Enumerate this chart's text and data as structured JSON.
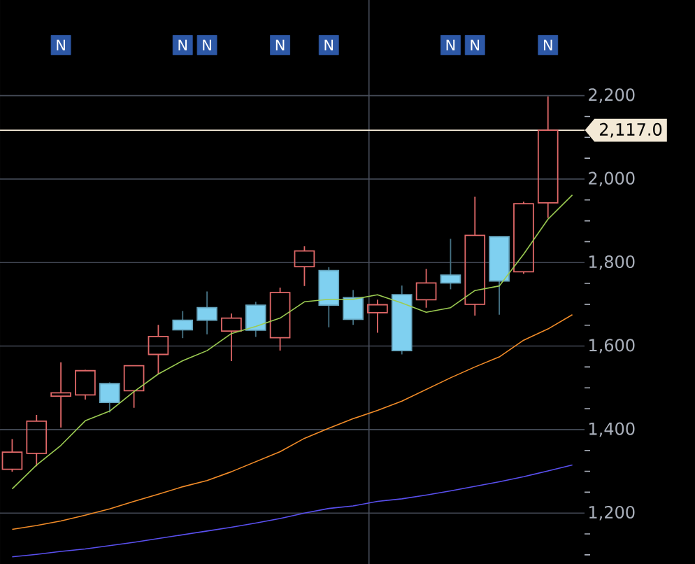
{
  "chart_data": {
    "type": "candlestick",
    "categories": [
      null,
      null,
      null,
      null,
      null,
      null,
      null,
      null,
      null,
      null,
      null,
      null,
      null,
      null,
      null,
      null,
      null,
      null,
      null,
      null,
      null,
      null,
      null,
      null
    ],
    "ohlc": [
      [
        1305,
        1377,
        1299,
        1346
      ],
      [
        1343,
        1435,
        1312,
        1420
      ],
      [
        1480,
        1561,
        1405,
        1488
      ],
      [
        1483,
        1543,
        1472,
        1541
      ],
      [
        1510,
        1513,
        1441,
        1465
      ],
      [
        1493,
        1554,
        1452,
        1553
      ],
      [
        1580,
        1651,
        1534,
        1623
      ],
      [
        1662,
        1684,
        1619,
        1639
      ],
      [
        1692,
        1731,
        1628,
        1662
      ],
      [
        1636,
        1678,
        1564,
        1667
      ],
      [
        1698,
        1706,
        1622,
        1638
      ],
      [
        1620,
        1740,
        1589,
        1728
      ],
      [
        1790,
        1839,
        1744,
        1828
      ],
      [
        1781,
        1789,
        1645,
        1698
      ],
      [
        1716,
        1734,
        1651,
        1664
      ],
      [
        1680,
        1711,
        1632,
        1699
      ],
      [
        1723,
        1745,
        1580,
        1589
      ],
      [
        1711,
        1785,
        1692,
        1751
      ],
      [
        1770,
        1857,
        1736,
        1751
      ],
      [
        1700,
        1958,
        1673,
        1865
      ],
      [
        1862,
        1863,
        1675,
        1756
      ],
      [
        1778,
        1946,
        1773,
        1941
      ],
      [
        1943,
        2198,
        1907,
        2117
      ],
      null
    ],
    "colors": [
      "#e06868",
      "#e06868",
      "#e06868",
      "#e06868",
      "#7fd0f0",
      "#e06868",
      "#e06868",
      "#7fd0f0",
      "#7fd0f0",
      "#e06868",
      "#7fd0f0",
      "#e06868",
      "#e06868",
      "#7fd0f0",
      "#7fd0f0",
      "#e06868",
      "#7fd0f0",
      "#e06868",
      "#7fd0f0",
      "#e06868",
      "#7fd0f0",
      "#e06868",
      "#e06868",
      null
    ],
    "series": [
      {
        "type": "line",
        "color": "#9ccc52",
        "values": [
          1258,
          1315,
          1362,
          1421,
          1444,
          1491,
          1533,
          1565,
          1589,
          1630,
          1647,
          1667,
          1706,
          1712,
          1712,
          1723,
          1703,
          1681,
          1692,
          1733,
          1744,
          1820,
          1904,
          1962
        ]
      },
      {
        "type": "line",
        "color": "#f28c28",
        "values": [
          1161,
          1170,
          1181,
          1195,
          1210,
          1228,
          1245,
          1263,
          1278,
          1299,
          1323,
          1347,
          1379,
          1403,
          1426,
          1446,
          1468,
          1496,
          1524,
          1550,
          1574,
          1614,
          1641,
          1675
        ]
      },
      {
        "type": "line",
        "color": "#5a50f0",
        "values": [
          1095,
          1101,
          1108,
          1114,
          1122,
          1130,
          1139,
          1148,
          1157,
          1166,
          1176,
          1187,
          1200,
          1211,
          1217,
          1228,
          1234,
          1243,
          1253,
          1264,
          1275,
          1287,
          1301,
          1315
        ]
      },
      {
        "type": "scatter",
        "color": "#2d58a6",
        "marker": "square",
        "values": [
          null,
          null,
          2321,
          null,
          null,
          null,
          null,
          2321,
          2321,
          null,
          null,
          2321,
          null,
          2321,
          null,
          null,
          null,
          null,
          2321,
          2321,
          null,
          null,
          2321,
          null
        ],
        "value_labels": [
          null,
          null,
          "N",
          null,
          null,
          null,
          null,
          "N",
          "N",
          null,
          null,
          "N",
          null,
          "N",
          null,
          null,
          null,
          null,
          "N",
          "N",
          null,
          null,
          "N",
          null
        ]
      }
    ],
    "ylim": [
      1078,
      2429
    ],
    "yticks": [
      {
        "value": 1100,
        "label": null
      },
      {
        "value": 1150,
        "label": null
      },
      {
        "value": 1200,
        "label": "1,200"
      },
      {
        "value": 1250,
        "label": null
      },
      {
        "value": 1300,
        "label": null
      },
      {
        "value": 1350,
        "label": null
      },
      {
        "value": 1400,
        "label": "1,400"
      },
      {
        "value": 1450,
        "label": null
      },
      {
        "value": 1500,
        "label": null
      },
      {
        "value": 1550,
        "label": null
      },
      {
        "value": 1600,
        "label": "1,600"
      },
      {
        "value": 1650,
        "label": null
      },
      {
        "value": 1700,
        "label": null
      },
      {
        "value": 1750,
        "label": null
      },
      {
        "value": 1800,
        "label": "1,800"
      },
      {
        "value": 1850,
        "label": null
      },
      {
        "value": 1900,
        "label": null
      },
      {
        "value": 1950,
        "label": null
      },
      {
        "value": 2000,
        "label": "2,000"
      },
      {
        "value": 2050,
        "label": null
      },
      {
        "value": 2100,
        "label": null
      },
      {
        "value": 2150,
        "label": null
      },
      {
        "value": 2200,
        "label": "2,200"
      }
    ],
    "grid": "y",
    "tick_labels": "y",
    "ref_lines": [
      {
        "axis": "y",
        "value": 2117,
        "label": "2,117.0",
        "color": "#f3e9d6"
      }
    ]
  }
}
